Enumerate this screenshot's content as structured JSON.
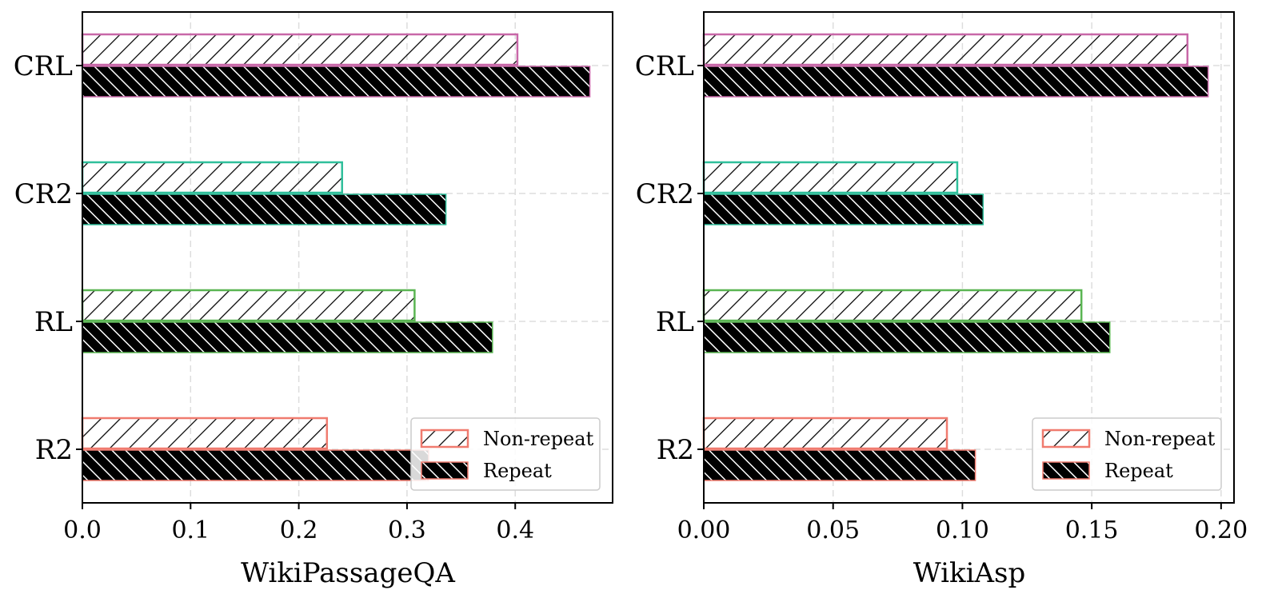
{
  "chart_data": [
    {
      "type": "bar",
      "orientation": "horizontal",
      "categories": [
        "R2",
        "RL",
        "CR2",
        "CRL"
      ],
      "series": [
        {
          "name": "Non-repeat",
          "values": [
            0.226,
            0.307,
            0.24,
            0.402
          ]
        },
        {
          "name": "Repeat",
          "values": [
            0.32,
            0.379,
            0.336,
            0.469
          ]
        }
      ],
      "category_colors": [
        "#f07b6f",
        "#5ab552",
        "#2fbf9b",
        "#c867a8"
      ],
      "xlabel": "WikiPassageQA",
      "ylabel": "",
      "xlim": [
        0,
        0.49
      ],
      "xticks": [
        0.0,
        0.1,
        0.2,
        0.3,
        0.4
      ],
      "xtick_labels": [
        "0.0",
        "0.1",
        "0.2",
        "0.3",
        "0.4"
      ],
      "grid": true,
      "legend": {
        "placement": "bottom-right",
        "entries": [
          "Non-repeat",
          "Repeat"
        ],
        "swatch_color": "#f07b6f"
      }
    },
    {
      "type": "bar",
      "orientation": "horizontal",
      "categories": [
        "R2",
        "RL",
        "CR2",
        "CRL"
      ],
      "series": [
        {
          "name": "Non-repeat",
          "values": [
            0.094,
            0.146,
            0.098,
            0.187
          ]
        },
        {
          "name": "Repeat",
          "values": [
            0.105,
            0.157,
            0.108,
            0.195
          ]
        }
      ],
      "category_colors": [
        "#f07b6f",
        "#5ab552",
        "#2fbf9b",
        "#c867a8"
      ],
      "xlabel": "WikiAsp",
      "ylabel": "",
      "xlim": [
        0,
        0.205
      ],
      "xticks": [
        0.0,
        0.05,
        0.1,
        0.15,
        0.2
      ],
      "xtick_labels": [
        "0.00",
        "0.05",
        "0.10",
        "0.15",
        "0.20"
      ],
      "grid": true,
      "legend": {
        "placement": "bottom-right",
        "entries": [
          "Non-repeat",
          "Repeat"
        ],
        "swatch_color": "#f07b6f"
      }
    }
  ]
}
